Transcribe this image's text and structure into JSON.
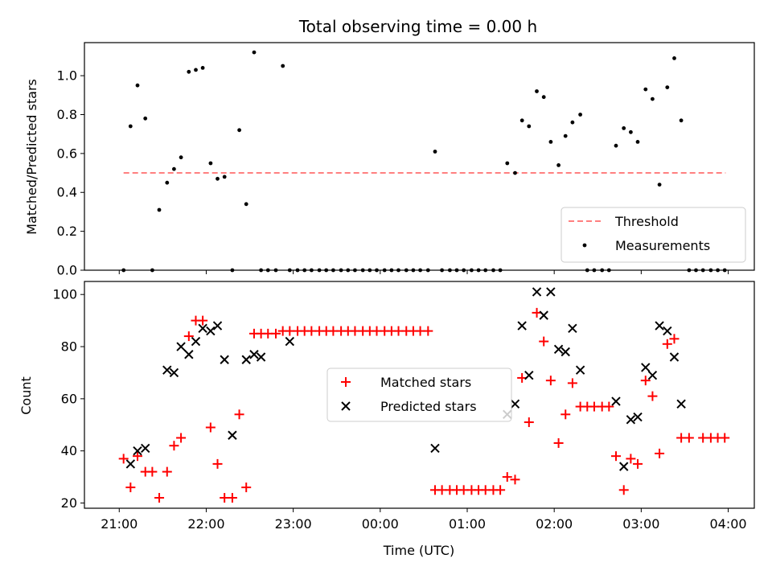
{
  "title": "Total observing time = 0.00 h",
  "colors": {
    "threshold": "#ff7f7f",
    "measurement": "#000000",
    "matched": "#ff0000",
    "predicted": "#000000"
  },
  "chart_data": [
    {
      "type": "scatter",
      "ylabel": "Matched/Predicted stars",
      "xlabel": "",
      "ylim": [
        0,
        1.17
      ],
      "xlim": [
        20.6,
        28.3
      ],
      "yticks": [
        0.0,
        0.2,
        0.4,
        0.6,
        0.8,
        1.0
      ],
      "yticklabels": [
        "0.0",
        "0.2",
        "0.4",
        "0.6",
        "0.8",
        "1.0"
      ],
      "legend_position": "lower-right",
      "threshold": {
        "name": "Threshold",
        "value": 0.5,
        "x_range": [
          21.05,
          27.97
        ]
      },
      "series": [
        {
          "name": "Measurements",
          "x": [
            21.05,
            21.13,
            21.21,
            21.3,
            21.38,
            21.46,
            21.55,
            21.63,
            21.71,
            21.8,
            21.88,
            21.96,
            22.05,
            22.13,
            22.21,
            22.3,
            22.38,
            22.46,
            22.55,
            22.63,
            22.71,
            22.8,
            22.88,
            22.96,
            23.05,
            23.13,
            23.21,
            23.3,
            23.38,
            23.46,
            23.55,
            23.63,
            23.71,
            23.8,
            23.88,
            23.96,
            24.05,
            24.13,
            24.21,
            24.3,
            24.38,
            24.46,
            24.55,
            24.63,
            24.71,
            24.8,
            24.88,
            24.96,
            25.05,
            25.13,
            25.21,
            25.3,
            25.38,
            25.46,
            25.55,
            25.63,
            25.71,
            25.8,
            25.88,
            25.96,
            26.05,
            26.13,
            26.21,
            26.3,
            26.38,
            26.46,
            26.55,
            26.63,
            26.71,
            26.8,
            26.88,
            26.96,
            27.05,
            27.13,
            27.21,
            27.3,
            27.38,
            27.46,
            27.55,
            27.63,
            27.71,
            27.8,
            27.88,
            27.96
          ],
          "y": [
            0.0,
            0.74,
            0.95,
            0.78,
            0.0,
            0.31,
            0.45,
            0.52,
            0.58,
            1.02,
            1.03,
            1.04,
            0.55,
            0.47,
            0.48,
            0.0,
            0.72,
            0.34,
            1.12,
            0.0,
            0.0,
            0.0,
            1.05,
            0.0,
            0.0,
            0.0,
            0.0,
            0.0,
            0.0,
            0.0,
            0.0,
            0.0,
            0.0,
            0.0,
            0.0,
            0.0,
            0.0,
            0.0,
            0.0,
            0.0,
            0.0,
            0.0,
            0.0,
            0.61,
            0.0,
            0.0,
            0.0,
            0.0,
            0.0,
            0.0,
            0.0,
            0.0,
            0.0,
            0.55,
            0.5,
            0.77,
            0.74,
            0.92,
            0.89,
            0.66,
            0.54,
            0.69,
            0.76,
            0.8,
            0.0,
            0.0,
            0.0,
            0.0,
            0.64,
            0.73,
            0.71,
            0.66,
            0.93,
            0.88,
            0.44,
            0.94,
            1.09,
            0.77,
            0.0,
            0.0,
            0.0,
            0.0,
            0.0,
            0.0
          ]
        }
      ]
    },
    {
      "type": "scatter",
      "ylabel": "Count",
      "xlabel": "Time (UTC)",
      "ylim": [
        18,
        105
      ],
      "xlim": [
        20.6,
        28.3
      ],
      "yticks": [
        20,
        40,
        60,
        80,
        100
      ],
      "yticklabels": [
        "20",
        "40",
        "60",
        "80",
        "100"
      ],
      "xticks": [
        21,
        22,
        23,
        24,
        25,
        26,
        27,
        28
      ],
      "xticklabels": [
        "21:00",
        "22:00",
        "23:00",
        "00:00",
        "01:00",
        "02:00",
        "03:00",
        "04:00"
      ],
      "legend_position": "center",
      "series": [
        {
          "name": "Matched stars",
          "x": [
            21.05,
            21.13,
            21.21,
            21.3,
            21.38,
            21.46,
            21.55,
            21.63,
            21.71,
            21.8,
            21.88,
            21.96,
            22.05,
            22.13,
            22.21,
            22.3,
            22.38,
            22.46,
            22.55,
            22.63,
            22.71,
            22.8,
            22.88,
            22.96,
            23.05,
            23.13,
            23.21,
            23.3,
            23.38,
            23.46,
            23.55,
            23.63,
            23.71,
            23.8,
            23.88,
            23.96,
            24.05,
            24.13,
            24.21,
            24.3,
            24.38,
            24.46,
            24.55,
            24.63,
            24.71,
            24.8,
            24.88,
            24.96,
            25.05,
            25.13,
            25.21,
            25.3,
            25.38,
            25.46,
            25.55,
            25.63,
            25.71,
            25.8,
            25.88,
            25.96,
            26.05,
            26.13,
            26.21,
            26.3,
            26.38,
            26.46,
            26.55,
            26.63,
            26.71,
            26.8,
            26.88,
            26.96,
            27.05,
            27.13,
            27.21,
            27.3,
            27.38,
            27.46,
            27.55,
            27.71,
            27.8,
            27.88,
            27.96
          ],
          "y": [
            37,
            26,
            38,
            32,
            32,
            22,
            32,
            42,
            45,
            84,
            90,
            90,
            49,
            35,
            22,
            22,
            54,
            26,
            85,
            85,
            85,
            85,
            86,
            86,
            86,
            86,
            86,
            86,
            86,
            86,
            86,
            86,
            86,
            86,
            86,
            86,
            86,
            86,
            86,
            86,
            86,
            86,
            86,
            25,
            25,
            25,
            25,
            25,
            25,
            25,
            25,
            25,
            25,
            30,
            29,
            68,
            51,
            93,
            82,
            67,
            43,
            54,
            66,
            57,
            57,
            57,
            57,
            57,
            38,
            25,
            37,
            35,
            67,
            61,
            39,
            81,
            83,
            45,
            45,
            45,
            45,
            45,
            45
          ]
        },
        {
          "name": "Predicted stars",
          "x": [
            21.13,
            21.21,
            21.3,
            21.55,
            21.63,
            21.71,
            21.8,
            21.88,
            21.96,
            22.05,
            22.13,
            22.21,
            22.3,
            22.46,
            22.55,
            22.63,
            22.96,
            24.63,
            25.46,
            25.55,
            25.63,
            25.71,
            25.8,
            25.88,
            25.96,
            26.05,
            26.13,
            26.21,
            26.3,
            26.71,
            26.8,
            26.88,
            26.96,
            27.05,
            27.13,
            27.21,
            27.3,
            27.38,
            27.46
          ],
          "y": [
            35,
            40,
            41,
            71,
            70,
            80,
            77,
            82,
            87,
            86,
            88,
            75,
            46,
            75,
            77,
            76,
            82,
            41,
            54,
            58,
            88,
            69,
            101,
            92,
            101,
            79,
            78,
            87,
            71,
            59,
            34,
            52,
            53,
            72,
            69,
            88,
            86,
            76,
            58
          ]
        }
      ]
    }
  ]
}
